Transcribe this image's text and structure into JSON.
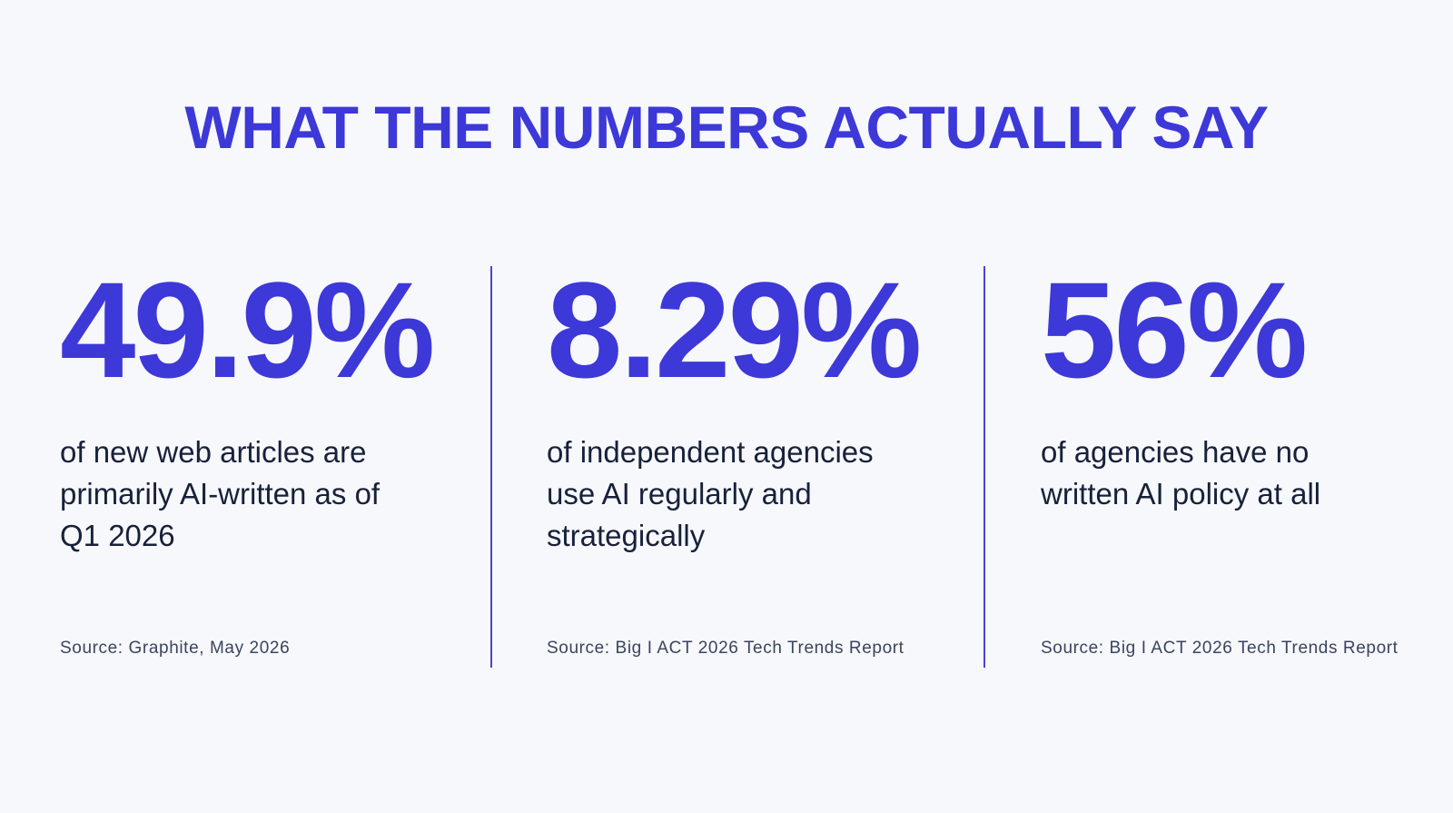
{
  "title": "WHAT THE NUMBERS ACTUALLY SAY",
  "stats": [
    {
      "value": "49.9%",
      "description": [
        "of new web articles are",
        "primarily AI-written as of",
        "Q1 2026"
      ],
      "source": "Source: Graphite, May 2026"
    },
    {
      "value": "8.29%",
      "description": [
        "of independent agencies",
        "use AI regularly and",
        "strategically"
      ],
      "source": "Source: Big I ACT 2026 Tech Trends Report"
    },
    {
      "value": "56%",
      "description": [
        "of agencies have no",
        "written AI policy at all"
      ],
      "source": "Source: Big I ACT 2026 Tech Trends Report"
    }
  ]
}
